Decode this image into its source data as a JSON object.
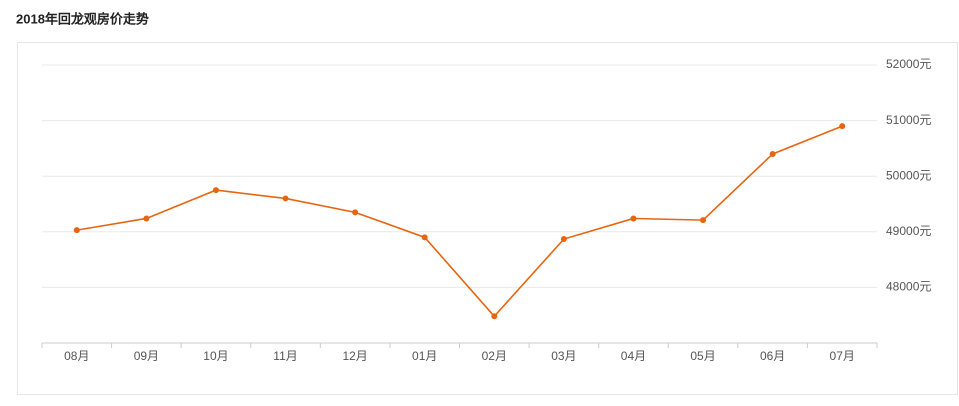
{
  "chart_data": {
    "type": "line",
    "title": "2018年回龙观房价走势",
    "categories": [
      "08月",
      "09月",
      "10月",
      "11月",
      "12月",
      "01月",
      "02月",
      "03月",
      "04月",
      "05月",
      "06月",
      "07月"
    ],
    "values": [
      49030,
      49240,
      49750,
      49600,
      49350,
      48900,
      47480,
      48870,
      49240,
      49210,
      50400,
      50900
    ],
    "color": "#e8650f",
    "ylim": [
      47000,
      52000
    ],
    "yticks": [
      {
        "value": 48000,
        "label": "48000元"
      },
      {
        "value": 49000,
        "label": "49000元"
      },
      {
        "value": 50000,
        "label": "50000元"
      },
      {
        "value": 51000,
        "label": "51000元"
      },
      {
        "value": 52000,
        "label": "52000元"
      }
    ],
    "grid": true
  }
}
